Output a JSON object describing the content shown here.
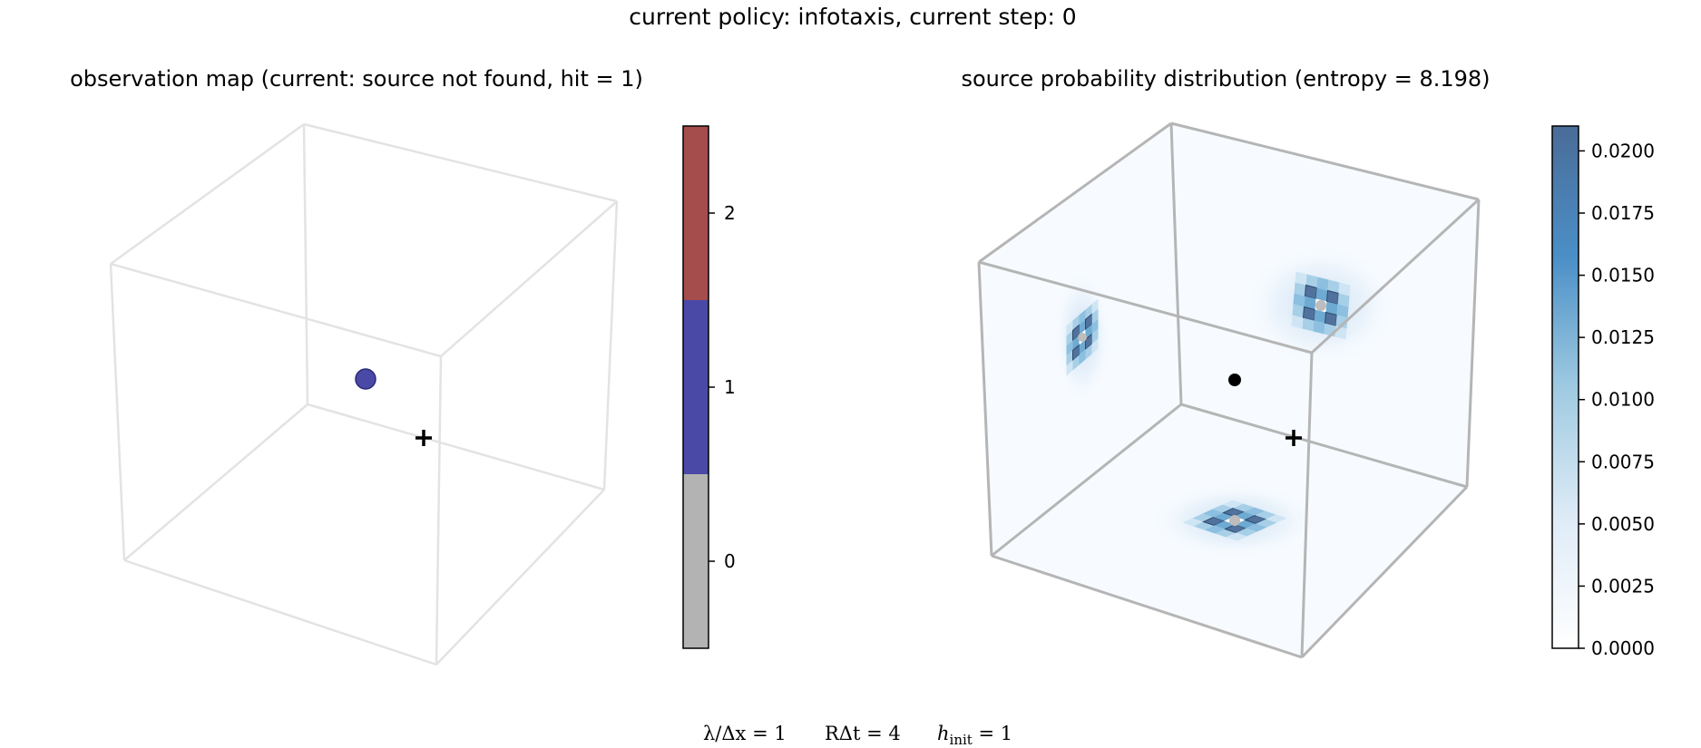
{
  "figure": {
    "suptitle": "current policy: infotaxis, current step: 0",
    "params": {
      "lambda_label": "λ/Δx = 1",
      "r_label": "RΔt = 4",
      "h_label": "h",
      "h_subscript": "init",
      "h_value": " = 1"
    }
  },
  "chart_data": [
    {
      "type": "scatter",
      "panel": "observation map",
      "title": "observation map (current: source not found, hit = 1)",
      "projection": "3d",
      "box_edge_color": "#e3e3e3",
      "points": [
        {
          "label": "observed hit",
          "hit": 1,
          "color": "#4a4aa6"
        }
      ],
      "agent_marker": "+",
      "colorbar": {
        "type": "discrete",
        "ticks": [
          "0",
          "1",
          "2"
        ],
        "colors": [
          "#b3b3b3",
          "#4a4aa6",
          "#a54d4d"
        ]
      }
    },
    {
      "type": "heatmap",
      "panel": "source probability distribution",
      "title": "source probability distribution (entropy = 8.198)",
      "projection": "3d",
      "box_edge_color": "#b5b5b5",
      "colormap": "Blues",
      "vmin": 0.0,
      "vmax": 0.021,
      "projections": [
        {
          "face": "left wall",
          "peak": 0.021
        },
        {
          "face": "back wall",
          "peak": 0.021
        },
        {
          "face": "floor",
          "peak": 0.021
        }
      ],
      "agent_marker": "+",
      "colorbar": {
        "ticks": [
          "0.0000",
          "0.0025",
          "0.0050",
          "0.0075",
          "0.0100",
          "0.0125",
          "0.0150",
          "0.0175",
          "0.0200"
        ],
        "tick_values": [
          0,
          0.0025,
          0.005,
          0.0075,
          0.01,
          0.0125,
          0.015,
          0.0175,
          0.02
        ],
        "color_low": "#f7fbff",
        "color_mid": "#6baed6",
        "color_high": "#4a6c98"
      }
    }
  ]
}
